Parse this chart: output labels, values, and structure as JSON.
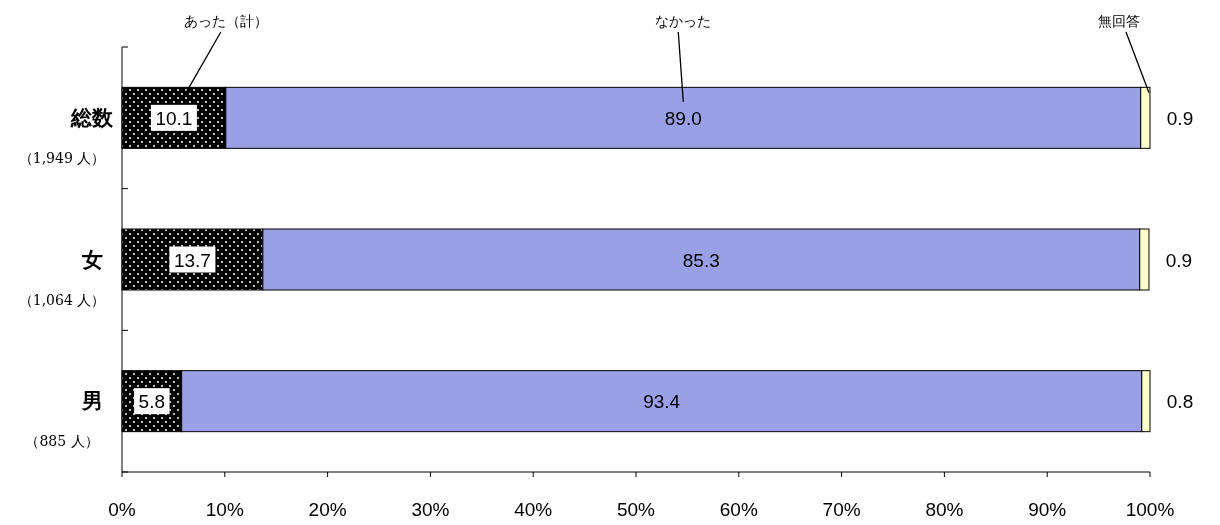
{
  "chart_data": {
    "type": "bar",
    "orientation": "horizontal",
    "stacked": true,
    "categories": [
      "総数（1,949 人）",
      "女（1,064 人）",
      "男（885 人）"
    ],
    "series": [
      {
        "name": "あった（計）",
        "color": "#000000",
        "values": [
          10.1,
          13.7,
          5.8
        ],
        "value_labels": [
          "10.1",
          "13.7",
          "5.8"
        ]
      },
      {
        "name": "なかった",
        "color": "#99a0e6",
        "values": [
          89.0,
          85.3,
          93.4
        ],
        "value_labels": [
          "89.0",
          "85.3",
          "93.4"
        ]
      },
      {
        "name": "無回答",
        "color": "#ffffcc",
        "values": [
          0.9,
          0.9,
          0.8
        ],
        "value_labels": [
          "0.9",
          "0.9",
          "0.8"
        ]
      }
    ],
    "xlim": [
      0,
      100
    ],
    "xticks": [
      {
        "value": 0,
        "label": "0%"
      },
      {
        "value": 10,
        "label": "10%"
      },
      {
        "value": 20,
        "label": "20%"
      },
      {
        "value": 30,
        "label": "30%"
      },
      {
        "value": 40,
        "label": "40%"
      },
      {
        "value": 50,
        "label": "50%"
      },
      {
        "value": 60,
        "label": "60%"
      },
      {
        "value": 70,
        "label": "70%"
      },
      {
        "value": 80,
        "label": "80%"
      },
      {
        "value": 90,
        "label": "90%"
      },
      {
        "value": 100,
        "label": "100%"
      }
    ]
  }
}
